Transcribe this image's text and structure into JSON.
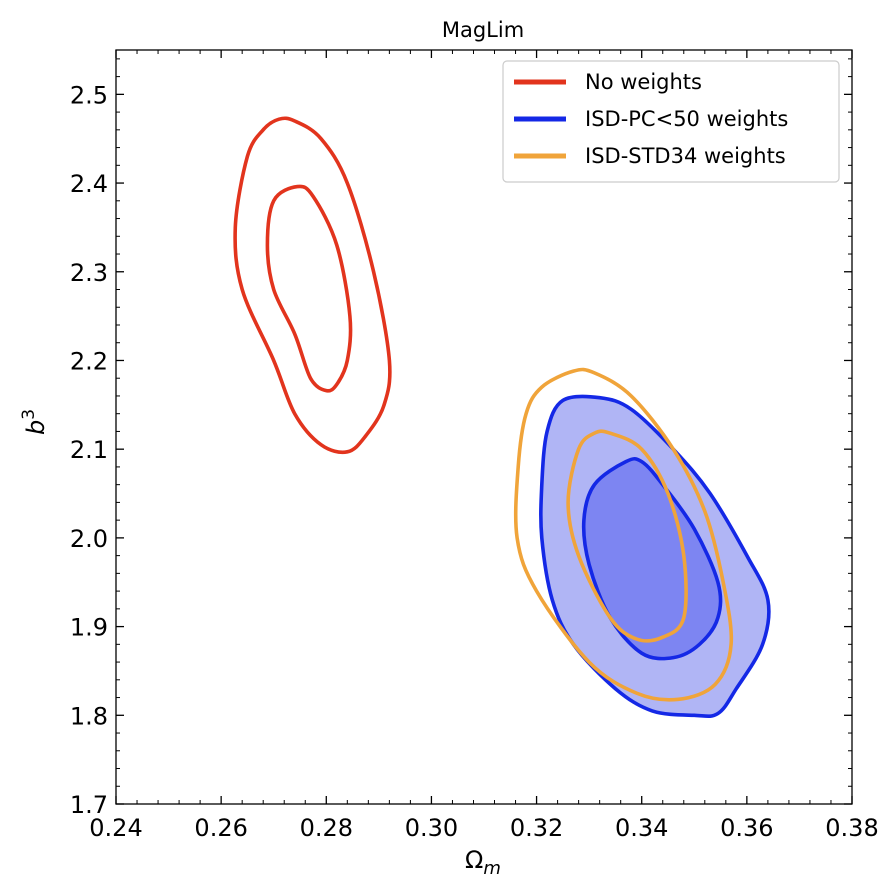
{
  "chart_data": {
    "type": "contour",
    "title": "MagLim",
    "xlabel": "Ω",
    "xlabel_sub": "m",
    "ylabel": "b",
    "ylabel_sup": "3",
    "xlim": [
      0.24,
      0.38
    ],
    "ylim": [
      1.7,
      2.55
    ],
    "xticks": [
      0.24,
      0.26,
      0.28,
      0.3,
      0.32,
      0.34,
      0.36,
      0.38
    ],
    "xtick_labels": [
      "0.24",
      "0.26",
      "0.28",
      "0.30",
      "0.32",
      "0.34",
      "0.36",
      "0.38"
    ],
    "yticks": [
      1.7,
      1.8,
      1.9,
      2.0,
      2.1,
      2.2,
      2.3,
      2.4,
      2.5
    ],
    "ytick_labels": [
      "1.7",
      "1.8",
      "1.9",
      "2.0",
      "2.1",
      "2.2",
      "2.3",
      "2.4",
      "2.5"
    ],
    "legend_position": "top-right",
    "series": [
      {
        "name": "No weights",
        "color": "#e2341d",
        "filled": false,
        "contours": [
          {
            "level": "outer",
            "points": [
              [
                0.271,
                2.472
              ],
              [
                0.274,
                2.47
              ],
              [
                0.279,
                2.45
              ],
              [
                0.284,
                2.4
              ],
              [
                0.289,
                2.3
              ],
              [
                0.292,
                2.2
              ],
              [
                0.291,
                2.15
              ],
              [
                0.2875,
                2.115
              ],
              [
                0.284,
                2.097
              ],
              [
                0.279,
                2.105
              ],
              [
                0.274,
                2.14
              ],
              [
                0.27,
                2.2
              ],
              [
                0.264,
                2.28
              ],
              [
                0.2627,
                2.35
              ],
              [
                0.265,
                2.43
              ],
              [
                0.268,
                2.46
              ]
            ]
          },
          {
            "level": "inner",
            "points": [
              [
                0.2745,
                2.396
              ],
              [
                0.2775,
                2.385
              ],
              [
                0.282,
                2.33
              ],
              [
                0.2845,
                2.25
              ],
              [
                0.284,
                2.2
              ],
              [
                0.282,
                2.173
              ],
              [
                0.28,
                2.166
              ],
              [
                0.277,
                2.18
              ],
              [
                0.274,
                2.23
              ],
              [
                0.27,
                2.28
              ],
              [
                0.2688,
                2.33
              ],
              [
                0.27,
                2.38
              ]
            ]
          }
        ]
      },
      {
        "name": "ISD-PC<50 weights",
        "color": "#1428e6",
        "filled": true,
        "fill_outer": "#b0b5f5",
        "fill_inner": "#7d85f2",
        "contours": [
          {
            "level": "outer",
            "points": [
              [
                0.325,
                2.155
              ],
              [
                0.332,
                2.158
              ],
              [
                0.338,
                2.145
              ],
              [
                0.346,
                2.1
              ],
              [
                0.353,
                2.05
              ],
              [
                0.36,
                1.98
              ],
              [
                0.364,
                1.93
              ],
              [
                0.363,
                1.88
              ],
              [
                0.358,
                1.83
              ],
              [
                0.3545,
                1.802
              ],
              [
                0.35,
                1.8
              ],
              [
                0.342,
                1.805
              ],
              [
                0.335,
                1.83
              ],
              [
                0.327,
                1.88
              ],
              [
                0.323,
                1.93
              ],
              [
                0.321,
                2.0
              ],
              [
                0.321,
                2.06
              ],
              [
                0.322,
                2.12
              ]
            ]
          },
          {
            "level": "inner",
            "points": [
              [
                0.337,
                2.086
              ],
              [
                0.34,
                2.086
              ],
              [
                0.344,
                2.06
              ],
              [
                0.35,
                2.01
              ],
              [
                0.3545,
                1.95
              ],
              [
                0.3545,
                1.91
              ],
              [
                0.351,
                1.88
              ],
              [
                0.346,
                1.865
              ],
              [
                0.34,
                1.87
              ],
              [
                0.334,
                1.91
              ],
              [
                0.33,
                1.97
              ],
              [
                0.329,
                2.02
              ],
              [
                0.331,
                2.06
              ]
            ]
          }
        ]
      },
      {
        "name": "ISD-STD34 weights",
        "color": "#f0a43a",
        "filled": false,
        "contours": [
          {
            "level": "outer",
            "points": [
              [
                0.327,
                2.188
              ],
              [
                0.331,
                2.186
              ],
              [
                0.338,
                2.16
              ],
              [
                0.346,
                2.1
              ],
              [
                0.352,
                2.03
              ],
              [
                0.3555,
                1.95
              ],
              [
                0.357,
                1.88
              ],
              [
                0.354,
                1.835
              ],
              [
                0.347,
                1.818
              ],
              [
                0.339,
                1.825
              ],
              [
                0.33,
                1.86
              ],
              [
                0.32,
                1.94
              ],
              [
                0.3163,
                2.0
              ],
              [
                0.3165,
                2.08
              ],
              [
                0.318,
                2.14
              ],
              [
                0.321,
                2.17
              ]
            ]
          },
          {
            "level": "inner",
            "points": [
              [
                0.331,
                2.118
              ],
              [
                0.334,
                2.118
              ],
              [
                0.34,
                2.1
              ],
              [
                0.345,
                2.05
              ],
              [
                0.348,
                1.98
              ],
              [
                0.348,
                1.91
              ],
              [
                0.344,
                1.888
              ],
              [
                0.339,
                1.886
              ],
              [
                0.334,
                1.91
              ],
              [
                0.328,
                1.98
              ],
              [
                0.326,
                2.04
              ],
              [
                0.328,
                2.1
              ]
            ]
          }
        ]
      }
    ]
  }
}
